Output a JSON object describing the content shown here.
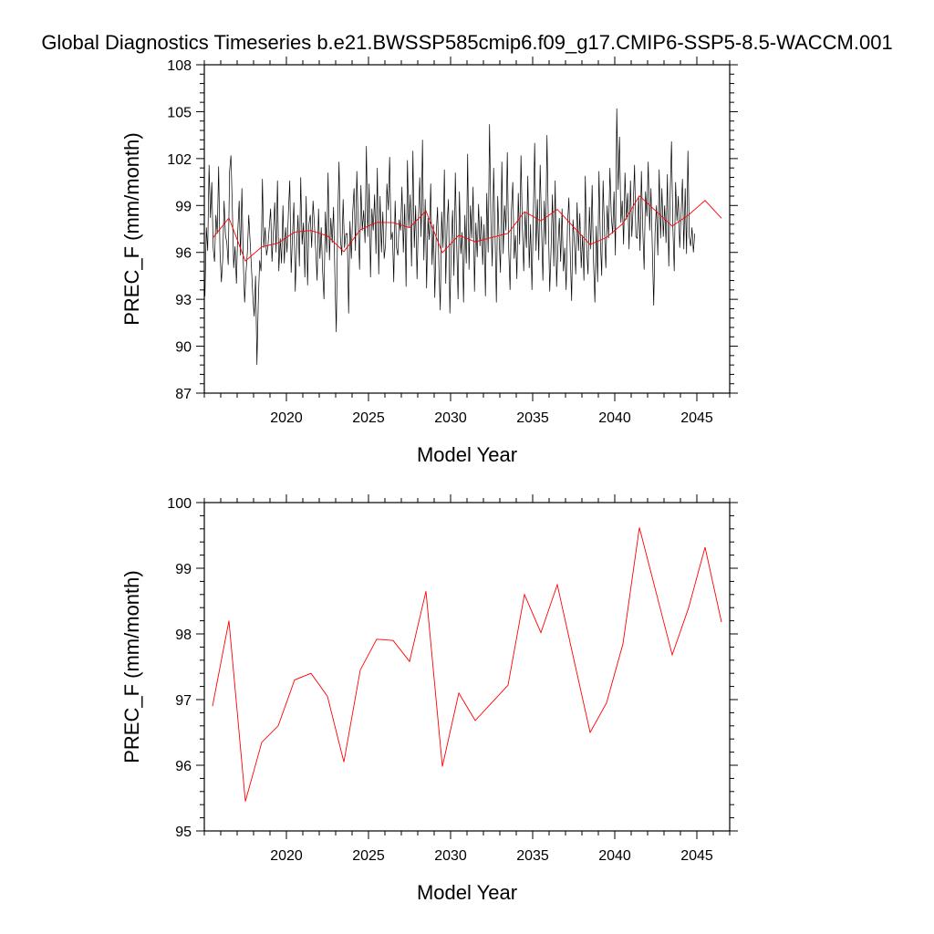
{
  "title": "Global Diagnostics Timeseries b.e21.BWSSP585cmip6.f09_g17.CMIP6-SSP5-8.5-WACCM.001",
  "colors": {
    "monthly": "#000000",
    "annual": "#ff0000",
    "axes": "#000000"
  },
  "chart_data": [
    {
      "type": "line",
      "title": "Global Diagnostics Timeseries b.e21.BWSSP585cmip6.f09_g17.CMIP6-SSP5-8.5-WACCM.001",
      "xlabel": "Model Year",
      "ylabel": "PREC_F (mm/month)",
      "xlim": [
        2015,
        2047
      ],
      "ylim": [
        87,
        108
      ],
      "xticks": [
        2020,
        2025,
        2030,
        2035,
        2040,
        2045
      ],
      "xtick_labels": [
        "2020",
        "2025",
        "2030",
        "2035",
        "2040",
        "2045"
      ],
      "yticks": [
        87,
        90,
        93,
        96,
        99,
        102,
        105,
        108
      ],
      "ytick_labels": [
        "87",
        "90",
        "93",
        "96",
        "99",
        "102",
        "105",
        "108"
      ],
      "series": [
        {
          "name": "monthly",
          "color": "#000000",
          "x_start": 2015.04,
          "x_step": 0.08333,
          "values": [
            93.2,
            97.6,
            96.1,
            101.6,
            98.2,
            100.5,
            96.3,
            95.4,
            98.4,
            97.2,
            101.5,
            96.0,
            94.1,
            95.6,
            99.3,
            97.1,
            96.6,
            95.2,
            101.2,
            102.2,
            98.9,
            95.0,
            96.4,
            94.0,
            97.4,
            99.3,
            95.8,
            100.1,
            95.5,
            92.8,
            94.7,
            96.0,
            98.4,
            96.7,
            95.0,
            93.2,
            91.9,
            94.5,
            88.8,
            92.9,
            95.5,
            94.8,
            100.7,
            96.3,
            97.6,
            95.8,
            96.4,
            97.6,
            98.8,
            95.4,
            97.3,
            99.2,
            96.0,
            100.6,
            94.8,
            96.9,
            95.3,
            99.0,
            95.3,
            97.6,
            96.0,
            98.6,
            100.6,
            94.7,
            97.1,
            99.2,
            93.5,
            96.3,
            98.4,
            95.1,
            100.8,
            96.5,
            97.9,
            94.4,
            99.6,
            93.9,
            97.8,
            98.4,
            96.3,
            99.3,
            97.8,
            96.1,
            94.2,
            98.8,
            95.6,
            97.6,
            94.8,
            93.0,
            98.6,
            96.0,
            101.1,
            95.5,
            98.2,
            96.6,
            98.9,
            94.4,
            90.9,
            97.8,
            101.8,
            96.9,
            95.8,
            99.4,
            96.3,
            97.2,
            97.2,
            92.1,
            98.0,
            95.6,
            98.6,
            100.1,
            96.1,
            101.2,
            97.9,
            94.9,
            100.3,
            97.4,
            98.7,
            96.6,
            102.8,
            97.0,
            100.4,
            94.4,
            98.8,
            97.4,
            99.7,
            95.9,
            101.4,
            94.6,
            99.6,
            96.0,
            98.6,
            95.6,
            96.5,
            100.4,
            98.7,
            102.1,
            96.8,
            97.3,
            94.1,
            99.3,
            96.3,
            95.8,
            98.1,
            97.4,
            100.2,
            96.0,
            99.1,
            93.8,
            101.9,
            97.6,
            99.7,
            95.1,
            102.5,
            96.3,
            99.0,
            94.3,
            98.0,
            100.8,
            97.0,
            103.2,
            95.5,
            99.4,
            93.7,
            98.2,
            96.8,
            100.4,
            95.2,
            97.8,
            93.1,
            97.1,
            98.9,
            95.1,
            92.3,
            98.6,
            96.3,
            101.3,
            94.0,
            97.9,
            99.4,
            92.1,
            96.3,
            98.7,
            94.5,
            101.1,
            96.5,
            93.0,
            99.9,
            95.9,
            97.3,
            92.8,
            98.4,
            95.3,
            102.3,
            94.9,
            99.0,
            96.9,
            100.2,
            93.5,
            97.9,
            95.7,
            99.1,
            96.4,
            98.3,
            95.2,
            97.8,
            93.2,
            99.8,
            96.0,
            104.2,
            98.1,
            95.1,
            101.4,
            97.3,
            92.8,
            99.6,
            96.9,
            94.7,
            101.8,
            95.9,
            99.0,
            97.4,
            102.4,
            96.2,
            93.6,
            98.7,
            100.5,
            95.6,
            97.1,
            94.3,
            99.8,
            96.5,
            102.2,
            97.6,
            94.8,
            98.6,
            96.3,
            100.9,
            95.0,
            97.8,
            93.6,
            98.4,
            103.0,
            96.1,
            99.4,
            95.5,
            101.6,
            97.7,
            94.2,
            99.3,
            96.5,
            103.5,
            97.8,
            93.5,
            96.3,
            99.7,
            95.1,
            100.6,
            93.8,
            96.4,
            98.2,
            95.4,
            98.8,
            94.8,
            96.3,
            93.6,
            97.8,
            99.5,
            95.9,
            92.9,
            98.1,
            96.7,
            94.6,
            99.2,
            96.1,
            98.5,
            95.0,
            97.1,
            94.2,
            100.9,
            96.2,
            94.6,
            98.9,
            96.2,
            100.3,
            95.4,
            92.8,
            97.7,
            94.1,
            101.2,
            96.8,
            94.5,
            100.6,
            97.4,
            95.0,
            99.0,
            96.9,
            101.4,
            98.3,
            97.2,
            99.9,
            95.8,
            105.2,
            100.0,
            103.4,
            97.9,
            99.3,
            96.5,
            101.1,
            98.1,
            99.8,
            96.2,
            100.6,
            97.0,
            98.9,
            101.6,
            97.0,
            96.9,
            99.6,
            96.1,
            101.2,
            97.5,
            94.9,
            99.9,
            98.3,
            101.8,
            97.4,
            100.1,
            96.2,
            92.6,
            97.3,
            99.0,
            95.8,
            101.3,
            96.9,
            100.1,
            97.0,
            99.0,
            96.6,
            101.0,
            95.1,
            99.6,
            103.1,
            97.6,
            94.8,
            100.5,
            98.0,
            99.6,
            96.3,
            98.4,
            100.7,
            96.2,
            100.1,
            95.9,
            102.5,
            97.0,
            96.4,
            97.6,
            96.0,
            97.2
          ]
        },
        {
          "name": "annual mean",
          "color": "#ff0000",
          "x": [
            2015.5,
            2016.5,
            2017.5,
            2018.5,
            2019.5,
            2020.5,
            2021.5,
            2022.5,
            2023.5,
            2024.5,
            2025.5,
            2026.5,
            2027.5,
            2028.5,
            2029.5,
            2030.5,
            2031.5,
            2032.5,
            2033.5,
            2034.5,
            2035.5,
            2036.5,
            2037.5,
            2038.5,
            2039.5,
            2040.5,
            2041.5,
            2042.5,
            2043.5,
            2044.5,
            2045.5,
            2046.5
          ],
          "values": [
            96.9,
            98.2,
            95.45,
            96.35,
            96.6,
            97.3,
            97.4,
            97.05,
            96.05,
            97.45,
            97.92,
            97.9,
            97.58,
            98.65,
            95.98,
            97.1,
            96.68,
            96.95,
            97.22,
            98.6,
            98.02,
            98.75,
            97.62,
            96.5,
            96.95,
            97.85,
            99.62,
            98.65,
            97.68,
            98.4,
            99.32,
            98.18
          ]
        }
      ]
    },
    {
      "type": "line",
      "title": "",
      "xlabel": "Model Year",
      "ylabel": "PREC_F (mm/month)",
      "xlim": [
        2015,
        2047
      ],
      "ylim": [
        95,
        100
      ],
      "xticks": [
        2020,
        2025,
        2030,
        2035,
        2040,
        2045
      ],
      "xtick_labels": [
        "2020",
        "2025",
        "2030",
        "2035",
        "2040",
        "2045"
      ],
      "yticks": [
        95,
        96,
        97,
        98,
        99,
        100
      ],
      "ytick_labels": [
        "95",
        "96",
        "97",
        "98",
        "99",
        "100"
      ],
      "series": [
        {
          "name": "annual mean",
          "color": "#ff0000",
          "x": [
            2015.5,
            2016.5,
            2017.5,
            2018.5,
            2019.5,
            2020.5,
            2021.5,
            2022.5,
            2023.5,
            2024.5,
            2025.5,
            2026.5,
            2027.5,
            2028.5,
            2029.5,
            2030.5,
            2031.5,
            2032.5,
            2033.5,
            2034.5,
            2035.5,
            2036.5,
            2037.5,
            2038.5,
            2039.5,
            2040.5,
            2041.5,
            2042.5,
            2043.5,
            2044.5,
            2045.5,
            2046.5
          ],
          "values": [
            96.9,
            98.2,
            95.45,
            96.35,
            96.6,
            97.3,
            97.4,
            97.05,
            96.05,
            97.45,
            97.92,
            97.9,
            97.58,
            98.65,
            95.98,
            97.1,
            96.68,
            96.95,
            97.22,
            98.6,
            98.02,
            98.75,
            97.62,
            96.5,
            96.95,
            97.85,
            99.62,
            98.65,
            97.68,
            98.4,
            99.32,
            98.18
          ]
        }
      ]
    }
  ]
}
